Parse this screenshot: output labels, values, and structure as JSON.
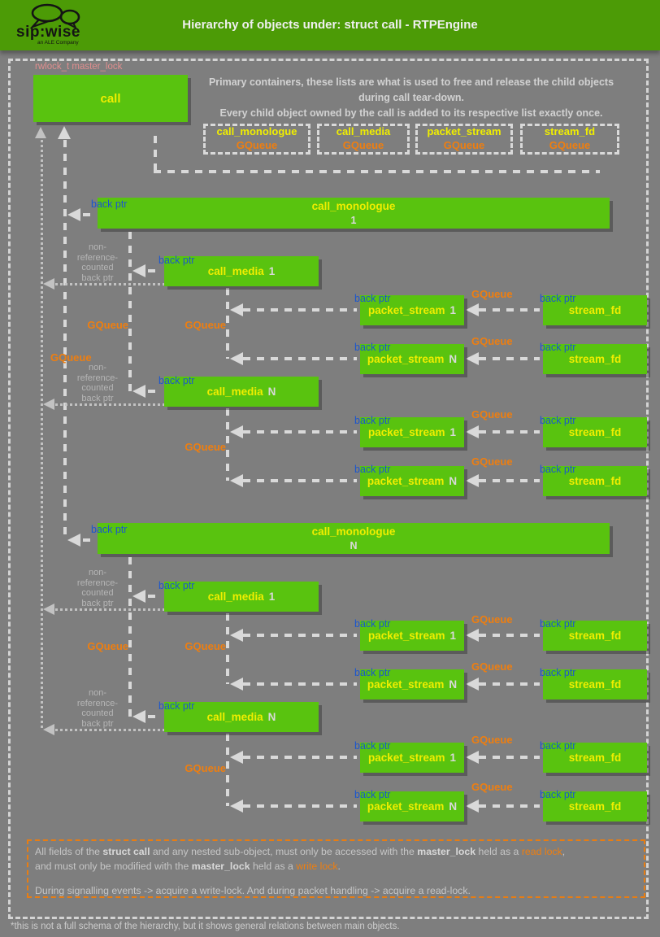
{
  "header": {
    "title": "Hierarchy of objects under: struct call - RTPEngine",
    "brand": "sip:wise",
    "tagline": "an ALE Company"
  },
  "colors": {
    "header_green": "#4c9b06",
    "box_green": "#59c30f",
    "label_yellow": "#f0ee00",
    "gqueue_orange": "#ee7e10",
    "backptr_blue": "#1c57cc",
    "masterlock_salmon": "#e08e8e",
    "background_gray": "#7e7e7e"
  },
  "diagram": {
    "master_lock_label": "rwlock_t master_lock",
    "call_label": "call",
    "info_lines": [
      "Primary containers, these lists are what is used to free and release the child objects",
      "during call tear-down.",
      "Every child object owned by the call is added to its respective list exactly once."
    ],
    "containers": [
      {
        "name": "call_monologue",
        "type": "GQueue"
      },
      {
        "name": "call_media",
        "type": "GQueue"
      },
      {
        "name": "packet_stream",
        "type": "GQueue"
      },
      {
        "name": "stream_fd",
        "type": "GQueue"
      }
    ],
    "labels": {
      "back_ptr": "back ptr",
      "gqueue": "GQueue",
      "non_ref": "non-\nreference-\ncounted\nback ptr"
    },
    "nodes": [
      {
        "label": "call_monologue",
        "num": "1"
      },
      {
        "label": "call_media",
        "num": "1"
      },
      {
        "label": "packet_stream",
        "num": "1"
      },
      {
        "label": "stream_fd",
        "num": ""
      },
      {
        "label": "packet_stream",
        "num": "N"
      },
      {
        "label": "stream_fd",
        "num": ""
      },
      {
        "label": "call_media",
        "num": "N"
      },
      {
        "label": "packet_stream",
        "num": "1"
      },
      {
        "label": "stream_fd",
        "num": ""
      },
      {
        "label": "packet_stream",
        "num": "N"
      },
      {
        "label": "stream_fd",
        "num": ""
      },
      {
        "label": "call_monologue",
        "num": "N"
      },
      {
        "label": "call_media",
        "num": "1"
      },
      {
        "label": "packet_stream",
        "num": "1"
      },
      {
        "label": "stream_fd",
        "num": ""
      },
      {
        "label": "packet_stream",
        "num": "N"
      },
      {
        "label": "stream_fd",
        "num": ""
      },
      {
        "label": "call_media",
        "num": "N"
      },
      {
        "label": "packet_stream",
        "num": "1"
      },
      {
        "label": "stream_fd",
        "num": ""
      },
      {
        "label": "packet_stream",
        "num": "N"
      },
      {
        "label": "stream_fd",
        "num": ""
      }
    ]
  },
  "note": {
    "line1": [
      {
        "t": "All fields of the "
      },
      {
        "t": "struct call",
        "b": true
      },
      {
        "t": " and any nested sub-object, must only be accessed with the "
      },
      {
        "t": "master_lock",
        "b": true
      },
      {
        "t": " held as a "
      },
      {
        "t": "read lock",
        "c": "orange"
      },
      {
        "t": ","
      }
    ],
    "line2": [
      {
        "t": "and must only be modified with the "
      },
      {
        "t": "master_lock",
        "b": true
      },
      {
        "t": " held as a "
      },
      {
        "t": "write lock",
        "c": "orange"
      },
      {
        "t": "."
      }
    ],
    "line3": "During signalling events -> acquire a write-lock. And during packet handling -> acquire a read-lock."
  },
  "footer": "*this is not a full schema of the hierarchy, but it shows general relations between main objects."
}
